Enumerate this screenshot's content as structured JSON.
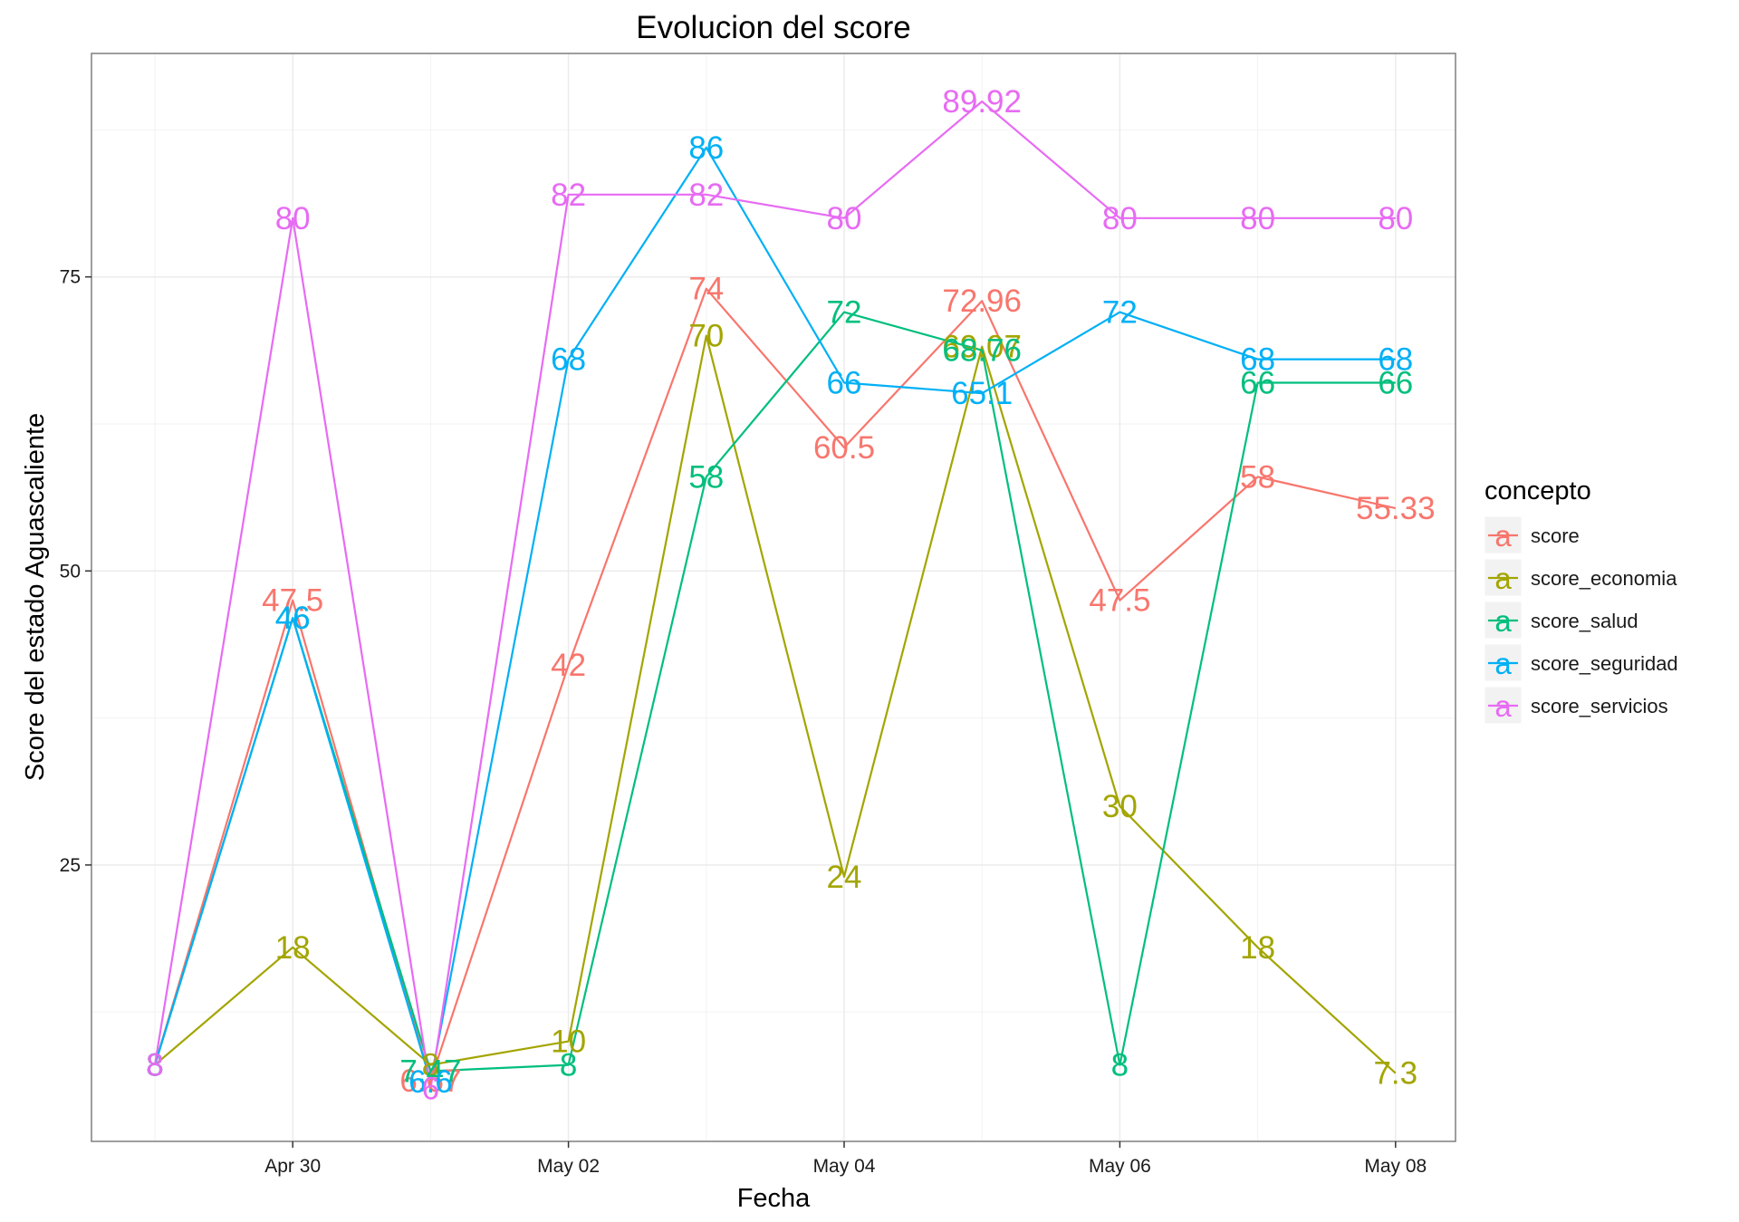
{
  "chart_data": {
    "type": "line",
    "title": "Evolucion del score",
    "xlabel": "Fecha",
    "ylabel": "Score del estado  Aguascaliente",
    "x": [
      "2020-04-29",
      "2020-04-30",
      "2020-05-01",
      "2020-05-02",
      "2020-05-03",
      "2020-05-04",
      "2020-05-05",
      "2020-05-06",
      "2020-05-07",
      "2020-05-08"
    ],
    "x_ticks": [
      {
        "date": "2020-04-30",
        "label": "Apr 30"
      },
      {
        "date": "2020-05-02",
        "label": "May 02"
      },
      {
        "date": "2020-05-04",
        "label": "May 04"
      },
      {
        "date": "2020-05-06",
        "label": "May 06"
      },
      {
        "date": "2020-05-08",
        "label": "May 08"
      }
    ],
    "y_ticks": [
      25,
      50,
      75
    ],
    "ylim": [
      1.5,
      94
    ],
    "grid": true,
    "legend": {
      "title": "concepto",
      "position": "right",
      "key_glyph": "a"
    },
    "series": [
      {
        "name": "score",
        "color": "#F8766D",
        "values": [
          8,
          47.5,
          6.67,
          42,
          74,
          60.5,
          72.96,
          47.5,
          58,
          55.33
        ],
        "labels": [
          "8",
          "47.5",
          "6.67",
          "42",
          "74",
          "60.5",
          "72.96",
          "47.5",
          "58",
          "55.33"
        ]
      },
      {
        "name": "score_economia",
        "color": "#A3A500",
        "values": [
          8,
          18,
          8,
          10,
          70,
          24,
          69.07,
          30,
          18,
          7.3
        ],
        "labels": [
          "8",
          "18",
          "8",
          "10",
          "70",
          "24",
          "69.07",
          "30",
          "18",
          "7.3"
        ]
      },
      {
        "name": "score_salud",
        "color": "#00BF7D",
        "values": [
          8,
          46,
          7.47,
          8,
          58,
          72,
          68.76,
          8,
          66,
          66
        ],
        "labels": [
          "8",
          "46",
          "7.47",
          "8",
          "58",
          "72",
          "68.76",
          "8",
          "66",
          "66"
        ]
      },
      {
        "name": "score_seguridad",
        "color": "#00B0F6",
        "values": [
          8,
          46,
          6.6,
          68,
          86,
          66,
          65.1,
          72,
          68,
          68
        ],
        "labels": [
          "8",
          "46",
          "6.6",
          "68",
          "86",
          "66",
          "65.1",
          "72",
          "68",
          "68"
        ]
      },
      {
        "name": "score_servicios",
        "color": "#E76BF3",
        "values": [
          8,
          80,
          6,
          82,
          82,
          80,
          89.92,
          80,
          80,
          80
        ],
        "labels": [
          "8",
          "80",
          "6",
          "82",
          "82",
          "80",
          "89.92",
          "80",
          "80",
          "80"
        ]
      }
    ]
  }
}
